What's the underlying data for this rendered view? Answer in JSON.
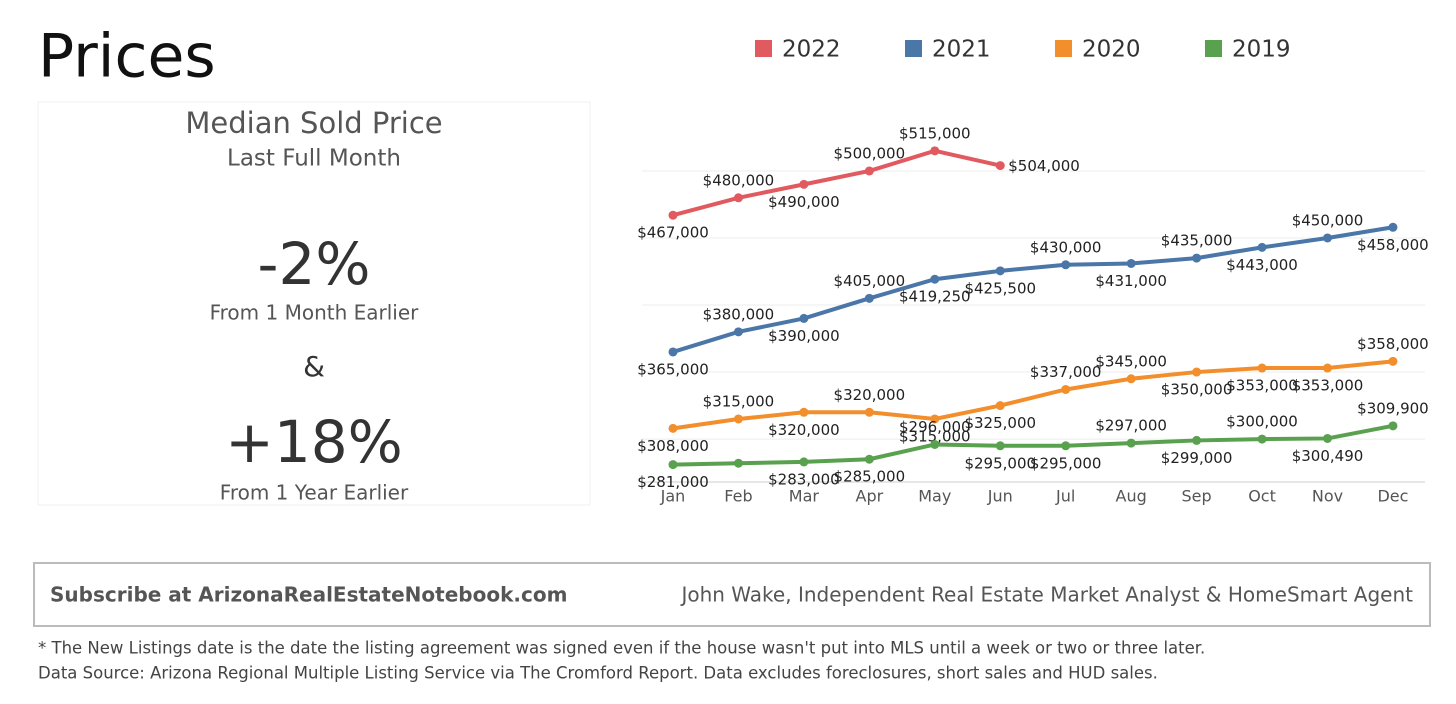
{
  "header": {
    "title": "Prices"
  },
  "kpi": {
    "heading": "Median Sold Price",
    "subheading": "Last Full Month",
    "month_change": "-2%",
    "month_caption": "From 1 Month Earlier",
    "joiner": "&",
    "year_change": "+18%",
    "year_caption": "From 1 Year Earlier"
  },
  "chart_data": {
    "type": "line",
    "categories": [
      "Jan",
      "Feb",
      "Mar",
      "Apr",
      "May",
      "Jun",
      "Jul",
      "Aug",
      "Sep",
      "Oct",
      "Nov",
      "Dec"
    ],
    "series": [
      {
        "name": "2022",
        "color": "#e05a5f",
        "values": [
          467000,
          480000,
          490000,
          500000,
          515000,
          504000,
          null,
          null,
          null,
          null,
          null,
          null
        ],
        "value_labels": [
          "$467,000",
          "$480,000",
          "$490,000",
          "$500,000",
          "$515,000",
          "$504,000",
          null,
          null,
          null,
          null,
          null,
          null
        ]
      },
      {
        "name": "2021",
        "color": "#4a76a8",
        "values": [
          365000,
          380000,
          390000,
          405000,
          419250,
          425500,
          430000,
          431000,
          435000,
          443000,
          450000,
          458000
        ],
        "value_labels": [
          "$365,000",
          "$380,000",
          "$390,000",
          "$405,000",
          "$419,250",
          "$425,500",
          "$430,000",
          "$431,000",
          "$435,000",
          "$443,000",
          "$450,000",
          "$458,000"
        ]
      },
      {
        "name": "2020",
        "color": "#f28e2b",
        "values": [
          308000,
          315000,
          320000,
          320000,
          315000,
          325000,
          337000,
          345000,
          350000,
          353000,
          353000,
          358000
        ],
        "value_labels": [
          "$308,000",
          "$315,000",
          "$320,000",
          "$320,000",
          "$315,000",
          "$325,000",
          "$337,000",
          "$345,000",
          "$350,000",
          "$353,000",
          "$353,000",
          "$358,000"
        ]
      },
      {
        "name": "2019",
        "color": "#59a14f",
        "values": [
          281000,
          282000,
          283000,
          285000,
          296000,
          295000,
          295000,
          297000,
          299000,
          300000,
          300490,
          309900
        ],
        "value_labels": [
          "$281,000",
          null,
          "$283,000",
          "$285,000",
          "$296,000",
          "$295,000",
          "$295,000",
          "$297,000",
          "$299,000",
          "$300,000",
          "$300,490",
          "$309,900"
        ]
      }
    ],
    "ylim": [
      268000,
      538000
    ],
    "yticks": [
      300000,
      350000,
      400000,
      450000,
      500000
    ],
    "ytick_labels": false,
    "grid": true,
    "legend": "top"
  },
  "footer": {
    "subscribe": "Subscribe at ArizonaRealEstateNotebook.com",
    "author": "John Wake, Independent Real Estate Market Analyst & HomeSmart Agent",
    "notes": [
      "* The New Listings date is the date the listing agreement was signed even if the house wasn't put into MLS until a week or two or three later.",
      "Data Source: Arizona Regional Multiple Listing Service via The Cromford Report. Data excludes foreclosures, short sales and HUD sales."
    ]
  }
}
